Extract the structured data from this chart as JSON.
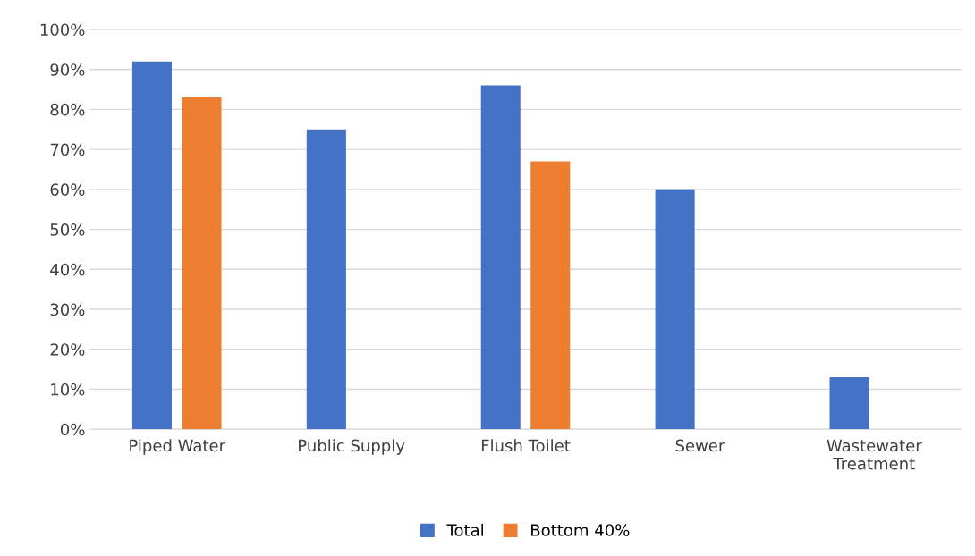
{
  "chart_data": {
    "type": "bar",
    "categories": [
      "Piped Water",
      "Public Supply",
      "Flush Toilet",
      "Sewer",
      "Wastewater Treatment"
    ],
    "series": [
      {
        "name": "Total",
        "color": "#4472c4",
        "values": [
          92,
          75,
          86,
          60,
          13
        ]
      },
      {
        "name": "Bottom 40%",
        "color": "#ed7d31",
        "values": [
          83,
          null,
          67,
          null,
          null
        ]
      }
    ],
    "ylim": [
      0,
      100
    ],
    "yticks": [
      {
        "value": 0,
        "label": "0%"
      },
      {
        "value": 10,
        "label": "10%"
      },
      {
        "value": 20,
        "label": "20%"
      },
      {
        "value": 30,
        "label": "30%"
      },
      {
        "value": 40,
        "label": "40%"
      },
      {
        "value": 50,
        "label": "50%"
      },
      {
        "value": 60,
        "label": "60%"
      },
      {
        "value": 70,
        "label": "70%"
      },
      {
        "value": 80,
        "label": "80%"
      },
      {
        "value": 90,
        "label": "90%"
      },
      {
        "value": 100,
        "label": "100%"
      }
    ],
    "grid": "y",
    "legend": "bottom"
  }
}
